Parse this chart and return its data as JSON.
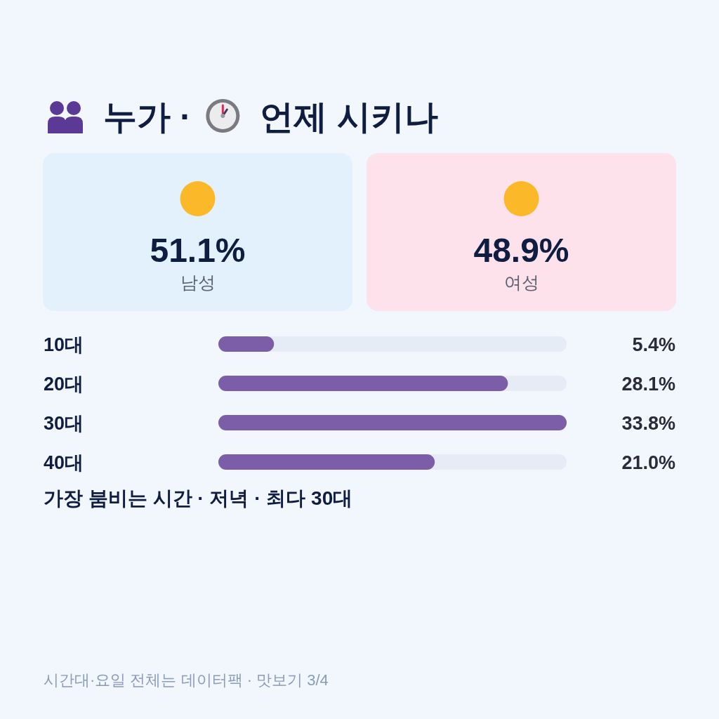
{
  "chart_data": [
    {
      "type": "other",
      "title": "누가 · 언제 시키나",
      "categories": [
        "남성",
        "여성"
      ],
      "values": [
        51.1,
        48.9
      ],
      "value_labels": [
        "51.1%",
        "48.9%"
      ],
      "colors": [
        "#e3f1fc",
        "#fde2ec"
      ]
    },
    {
      "type": "bar",
      "orientation": "horizontal",
      "categories": [
        "10대",
        "20대",
        "30대",
        "40대"
      ],
      "values": [
        5.4,
        28.1,
        33.8,
        21.0
      ],
      "value_labels": [
        "5.4%",
        "28.1%",
        "33.8%",
        "21.0%"
      ],
      "color": "#7b5ea7",
      "annotations": [
        "가장 붐비는 시간 · 저녁 · 최다 30대",
        "시간대·요일 전체는 데이터팩 · 맛보기 3/4"
      ]
    }
  ]
}
